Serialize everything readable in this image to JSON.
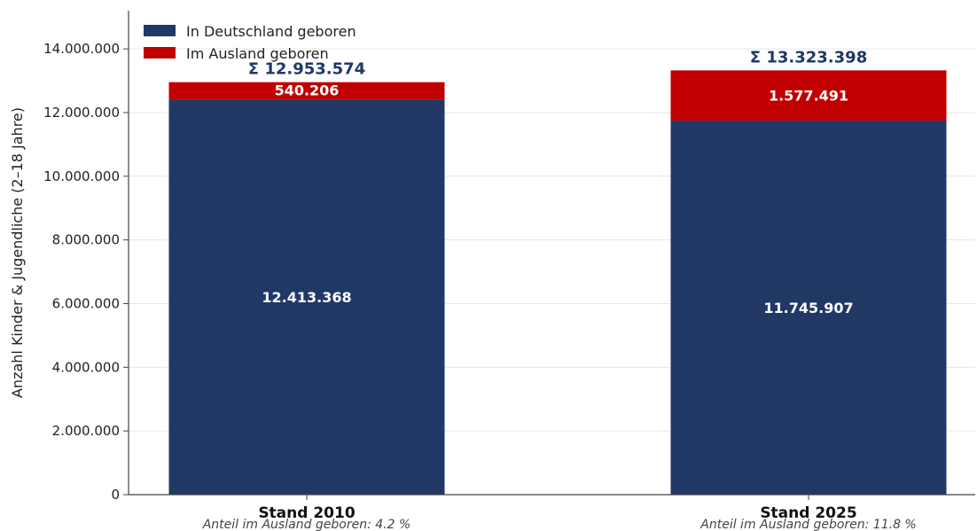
{
  "chart_data": {
    "type": "bar",
    "stacked": true,
    "categories": [
      "Stand 2010",
      "Stand 2025"
    ],
    "series": [
      {
        "name": "In Deutschland geboren",
        "color": "#213865",
        "values": [
          12413368,
          11745907
        ],
        "labels": [
          "12.413.368",
          "11.745.907"
        ]
      },
      {
        "name": "Im Ausland geboren",
        "color": "#c00000",
        "values": [
          540206,
          1577491
        ],
        "labels": [
          "540.206",
          "1.577.491"
        ]
      }
    ],
    "totals": [
      "Σ 12.953.574",
      "Σ 13.323.398"
    ],
    "notes": [
      "Anteil im Ausland geboren: 4.2 %",
      "Anteil im Ausland geboren: 11.8 %"
    ],
    "title": "",
    "xlabel": "",
    "ylabel": "Anzahl Kinder & Jugendliche (2–18 Jahre)",
    "ylim": [
      0,
      15200000
    ],
    "yticks": [
      0,
      2000000,
      4000000,
      6000000,
      8000000,
      10000000,
      12000000,
      14000000
    ],
    "ytick_labels": [
      "0",
      "2.000.000",
      "4.000.000",
      "6.000.000",
      "8.000.000",
      "10.000.000",
      "12.000.000",
      "14.000.000"
    ],
    "grid": "horizontal",
    "legend": "top-left"
  }
}
